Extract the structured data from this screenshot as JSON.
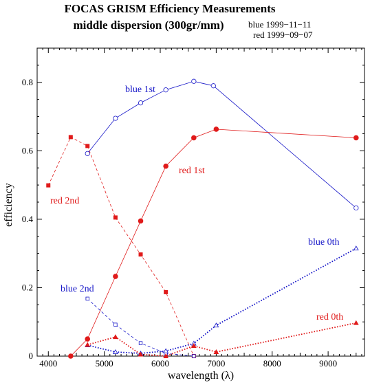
{
  "colors": {
    "blue": "#1515c8",
    "red": "#e01a1a",
    "axis": "#000000"
  },
  "header": {
    "title_line1": "FOCAS GRISM Efficiency Measurements",
    "title_line2": "middle dispersion (300gr/mm)",
    "date_blue": "blue 1999−11−11",
    "date_red": "red 1999−09−07"
  },
  "chart_data": {
    "type": "line",
    "xlabel": "wavelength (λ)",
    "ylabel": "efficiency",
    "xlim": [
      3800,
      9650
    ],
    "ylim": [
      0,
      0.9
    ],
    "xticks": [
      4000,
      5000,
      6000,
      7000,
      8000,
      9000
    ],
    "yticks": [
      0,
      0.2,
      0.4,
      0.6,
      0.8
    ],
    "grid": false,
    "series": [
      {
        "name": "blue 1st",
        "color": "#1515c8",
        "marker": "circle-open",
        "line": "solid-thin",
        "x": [
          4700,
          5200,
          5650,
          6100,
          6600,
          6950,
          9500
        ],
        "y": [
          0.592,
          0.695,
          0.74,
          0.778,
          0.803,
          0.79,
          0.433
        ]
      },
      {
        "name": "red 1st",
        "color": "#e01a1a",
        "marker": "circle-filled",
        "line": "solid-thin",
        "x": [
          4400,
          4700,
          5200,
          5650,
          6100,
          6600,
          7000,
          9500
        ],
        "y": [
          0.0,
          0.05,
          0.233,
          0.395,
          0.555,
          0.638,
          0.663,
          0.638
        ]
      },
      {
        "name": "red 2nd",
        "color": "#e01a1a",
        "marker": "square-filled",
        "line": "dashed",
        "x": [
          4000,
          4400,
          4700,
          5200,
          5650,
          6100,
          6600
        ],
        "y": [
          0.499,
          0.64,
          0.614,
          0.405,
          0.297,
          0.187,
          0.0
        ]
      },
      {
        "name": "blue 2nd",
        "color": "#1515c8",
        "marker": "square-open",
        "line": "dashed",
        "x": [
          4700,
          5200,
          5650,
          6100,
          6600
        ],
        "y": [
          0.168,
          0.092,
          0.038,
          0.008,
          0.0
        ]
      },
      {
        "name": "blue 0th",
        "color": "#1515c8",
        "marker": "triangle-open",
        "line": "dotted-thick",
        "x": [
          4700,
          5200,
          5650,
          6100,
          6600,
          7000,
          9500
        ],
        "y": [
          0.032,
          0.012,
          0.008,
          0.015,
          0.037,
          0.09,
          0.315
        ]
      },
      {
        "name": "red 0th",
        "color": "#e01a1a",
        "marker": "triangle-filled",
        "line": "dotted-thick",
        "x": [
          4700,
          5200,
          5650,
          6100,
          6600,
          7000,
          9500
        ],
        "y": [
          0.033,
          0.056,
          0.005,
          0.0,
          0.03,
          0.012,
          0.097
        ]
      }
    ],
    "annotations": [
      {
        "text": "blue 1st",
        "color": "#1515c8"
      },
      {
        "text": "red 1st",
        "color": "#e01a1a"
      },
      {
        "text": "red 2nd",
        "color": "#e01a1a"
      },
      {
        "text": "blue 2nd",
        "color": "#1515c8"
      },
      {
        "text": "blue 0th",
        "color": "#1515c8"
      },
      {
        "text": "red 0th",
        "color": "#e01a1a"
      }
    ]
  }
}
